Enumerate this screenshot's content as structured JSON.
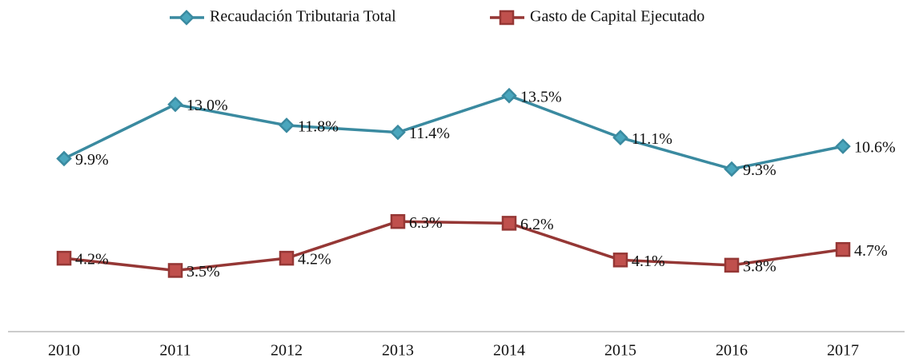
{
  "chart_data": {
    "type": "line",
    "categories": [
      "2010",
      "2011",
      "2012",
      "2013",
      "2014",
      "2015",
      "2016",
      "2017"
    ],
    "series": [
      {
        "name": "Recaudación Tributaria Total",
        "color": "#3a8aa0",
        "marker": "diamond",
        "values": [
          9.9,
          13.0,
          11.8,
          11.4,
          13.5,
          11.1,
          9.3,
          10.6
        ],
        "value_labels": [
          "9.9%",
          "13.0%",
          "11.8%",
          "11.4%",
          "13.5%",
          "11.1%",
          "9.3%",
          "10.6%"
        ]
      },
      {
        "name": "Gasto de Capital Ejecutado",
        "color": "#953735",
        "marker": "square",
        "values": [
          4.2,
          3.5,
          4.2,
          6.3,
          6.2,
          4.1,
          3.8,
          4.7
        ],
        "value_labels": [
          "4.2%",
          "3.5%",
          "4.2%",
          "6.3%",
          "6.2%",
          "4.1%",
          "3.8%",
          "4.7%"
        ]
      }
    ],
    "ylim": [
      0,
      16
    ],
    "legend": "top"
  }
}
